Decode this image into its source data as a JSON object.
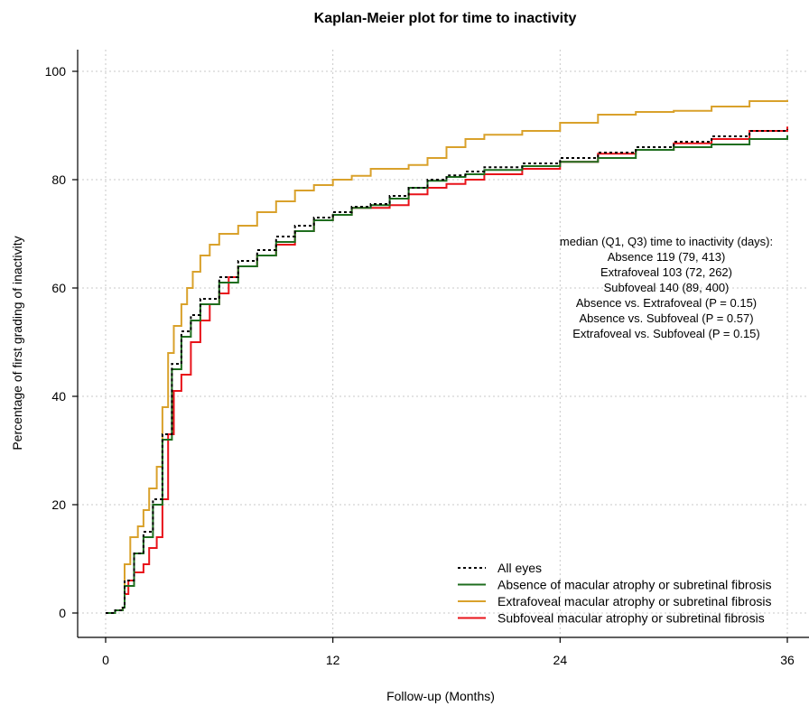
{
  "chart_data": {
    "type": "line",
    "title": "Kaplan-Meier plot for time to inactivity",
    "xlabel": "Follow-up (Months)",
    "ylabel": "Percentage of first grading of inactivity",
    "xlim": [
      0,
      36
    ],
    "ylim": [
      0,
      100
    ],
    "x_ticks": [
      0,
      12,
      24,
      36
    ],
    "y_ticks": [
      0,
      20,
      40,
      60,
      80,
      100
    ],
    "grid": true,
    "legend_position": "bottom-right",
    "annotations": [
      "median (Q1, Q3) time to inactivity (days):",
      "Absence 119 (79, 413)",
      "Extrafoveal 103 (72, 262)",
      "Subfoveal 140 (89, 400)",
      "Absence vs. Extrafoveal (P = 0.15)",
      "Absence vs. Subfoveal (P = 0.57)",
      "Extrafoveal vs. Subfoveal (P = 0.15)"
    ],
    "series": [
      {
        "name": "All eyes",
        "color": "#000000",
        "dashed": true,
        "points": [
          [
            0,
            0
          ],
          [
            0.5,
            0.5
          ],
          [
            0.9,
            1
          ],
          [
            1,
            6
          ],
          [
            1.5,
            11
          ],
          [
            2,
            15
          ],
          [
            2.5,
            21
          ],
          [
            3,
            33
          ],
          [
            3.5,
            46
          ],
          [
            4,
            52
          ],
          [
            4.5,
            55
          ],
          [
            5,
            58
          ],
          [
            6,
            62
          ],
          [
            7,
            65
          ],
          [
            8,
            67
          ],
          [
            9,
            69.5
          ],
          [
            10,
            71.5
          ],
          [
            11,
            73
          ],
          [
            12,
            74
          ],
          [
            13,
            75
          ],
          [
            14,
            75.5
          ],
          [
            15,
            77
          ],
          [
            16,
            78.5
          ],
          [
            17,
            80
          ],
          [
            18,
            80.8
          ],
          [
            19,
            81.5
          ],
          [
            20,
            82.3
          ],
          [
            22,
            83
          ],
          [
            24,
            84
          ],
          [
            26,
            85
          ],
          [
            28,
            86
          ],
          [
            30,
            87
          ],
          [
            32,
            88
          ],
          [
            34,
            89
          ],
          [
            36,
            89.3
          ]
        ]
      },
      {
        "name": "Absence of macular atrophy or subretinal fibrosis",
        "color": "#1f6e1f",
        "dashed": false,
        "points": [
          [
            0,
            0
          ],
          [
            0.5,
            0.5
          ],
          [
            0.9,
            1
          ],
          [
            1,
            5
          ],
          [
            1.5,
            11
          ],
          [
            2,
            14
          ],
          [
            2.5,
            20
          ],
          [
            3,
            32
          ],
          [
            3.5,
            45
          ],
          [
            4,
            51
          ],
          [
            4.5,
            54
          ],
          [
            5,
            57
          ],
          [
            6,
            61
          ],
          [
            7,
            64
          ],
          [
            8,
            66
          ],
          [
            9,
            68.5
          ],
          [
            10,
            70.5
          ],
          [
            11,
            72.5
          ],
          [
            12,
            73.5
          ],
          [
            13,
            74.8
          ],
          [
            14,
            75.3
          ],
          [
            15,
            76.5
          ],
          [
            16,
            78.5
          ],
          [
            17,
            79.8
          ],
          [
            18,
            80.5
          ],
          [
            19,
            81
          ],
          [
            20,
            81.8
          ],
          [
            22,
            82.5
          ],
          [
            24,
            83.3
          ],
          [
            26,
            84
          ],
          [
            28,
            85.5
          ],
          [
            30,
            86
          ],
          [
            32,
            86.5
          ],
          [
            34,
            87.5
          ],
          [
            36,
            88.2
          ]
        ]
      },
      {
        "name": "Extrafoveal macular atrophy or subretinal fibrosis",
        "color": "#d9a12b",
        "dashed": false,
        "points": [
          [
            0,
            0
          ],
          [
            0.5,
            0.5
          ],
          [
            0.9,
            1
          ],
          [
            1,
            9
          ],
          [
            1.3,
            14
          ],
          [
            1.7,
            16
          ],
          [
            2,
            19
          ],
          [
            2.3,
            23
          ],
          [
            2.7,
            27
          ],
          [
            3,
            38
          ],
          [
            3.3,
            48
          ],
          [
            3.6,
            53
          ],
          [
            4,
            57
          ],
          [
            4.3,
            60
          ],
          [
            4.6,
            63
          ],
          [
            5,
            66
          ],
          [
            5.5,
            68
          ],
          [
            6,
            70
          ],
          [
            7,
            71.5
          ],
          [
            8,
            74
          ],
          [
            9,
            76
          ],
          [
            10,
            78
          ],
          [
            11,
            79
          ],
          [
            12,
            80
          ],
          [
            13,
            80.7
          ],
          [
            14,
            82
          ],
          [
            16,
            82.7
          ],
          [
            17,
            84
          ],
          [
            18,
            86
          ],
          [
            19,
            87.5
          ],
          [
            20,
            88.3
          ],
          [
            22,
            89
          ],
          [
            24,
            90.5
          ],
          [
            26,
            92
          ],
          [
            28,
            92.5
          ],
          [
            30,
            92.7
          ],
          [
            32,
            93.5
          ],
          [
            34,
            94.5
          ],
          [
            36,
            94.7
          ]
        ]
      },
      {
        "name": "Subfoveal macular atrophy or subretinal fibrosis",
        "color": "#e8131a",
        "dashed": false,
        "points": [
          [
            0,
            0
          ],
          [
            0.5,
            0.5
          ],
          [
            0.9,
            1
          ],
          [
            1,
            3.5
          ],
          [
            1.2,
            6
          ],
          [
            1.5,
            7.5
          ],
          [
            2,
            9
          ],
          [
            2.3,
            12
          ],
          [
            2.7,
            14
          ],
          [
            3,
            21
          ],
          [
            3.3,
            33
          ],
          [
            3.6,
            41
          ],
          [
            4,
            44
          ],
          [
            4.5,
            50
          ],
          [
            5,
            54
          ],
          [
            5.5,
            57
          ],
          [
            6,
            59
          ],
          [
            6.5,
            62
          ],
          [
            7,
            64
          ],
          [
            8,
            66
          ],
          [
            9,
            68
          ],
          [
            10,
            70.5
          ],
          [
            11,
            72.5
          ],
          [
            12,
            73.5
          ],
          [
            13,
            74.8
          ],
          [
            15,
            75.3
          ],
          [
            16,
            77.3
          ],
          [
            17,
            78.5
          ],
          [
            18,
            79.2
          ],
          [
            19,
            80
          ],
          [
            20,
            81
          ],
          [
            22,
            82
          ],
          [
            24,
            83.3
          ],
          [
            26,
            84.8
          ],
          [
            28,
            85.5
          ],
          [
            30,
            86.7
          ],
          [
            32,
            87.5
          ],
          [
            34,
            89
          ],
          [
            36,
            89.8
          ]
        ]
      }
    ]
  }
}
